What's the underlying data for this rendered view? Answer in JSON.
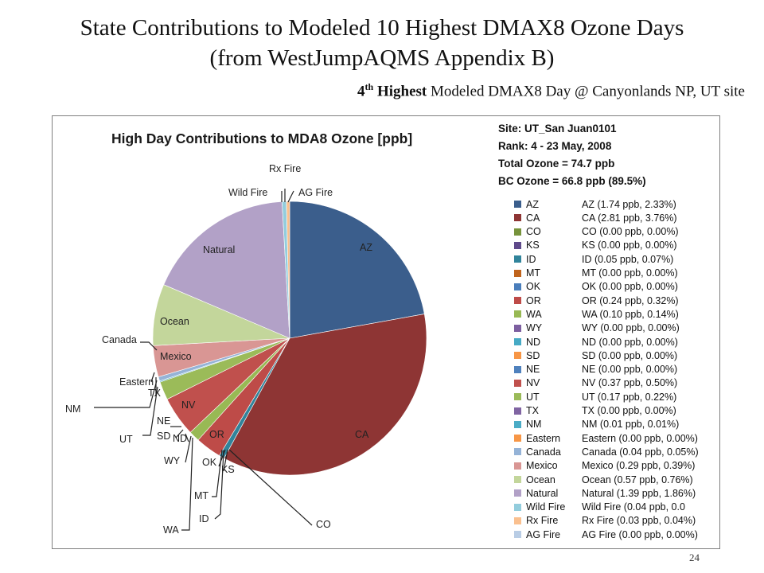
{
  "slide": {
    "title_line1": "State Contributions to Modeled 10 Highest DMAX8 Ozone Days",
    "title_line2": "(from WestJumpAQMS  Appendix B)",
    "subtitle_bold": "4",
    "subtitle_sup": "th",
    "subtitle_bold2": " Highest",
    "subtitle_rest": " Modeled DMAX8 Day @ Canyonlands NP, UT site",
    "page_number": "24"
  },
  "info": {
    "site": "Site: UT_San Juan0101",
    "rank": "Rank: 4 - 23 May, 2008",
    "total": "Total Ozone = 74.7 ppb",
    "bc": "BC Ozone = 66.8 ppb (89.5%)"
  },
  "chart_data": {
    "type": "pie",
    "title": "High Day Contributions to MDA8 Ozone [ppb]",
    "slices": [
      {
        "name": "AZ",
        "value": 1.74,
        "color": "#3b5e8c"
      },
      {
        "name": "CA",
        "value": 2.81,
        "color": "#8e3534"
      },
      {
        "name": "CO",
        "value": 0.0,
        "color": "#77933c"
      },
      {
        "name": "KS",
        "value": 0.0,
        "color": "#5f4a8b"
      },
      {
        "name": "ID",
        "value": 0.05,
        "color": "#31849b"
      },
      {
        "name": "MT",
        "value": 0.0,
        "color": "#c0641c"
      },
      {
        "name": "OK",
        "value": 0.0,
        "color": "#4a7ebb"
      },
      {
        "name": "OR",
        "value": 0.24,
        "color": "#be4b48"
      },
      {
        "name": "WA",
        "value": 0.1,
        "color": "#98b954"
      },
      {
        "name": "WY",
        "value": 0.0,
        "color": "#7d5fa0"
      },
      {
        "name": "ND",
        "value": 0.0,
        "color": "#46aac5"
      },
      {
        "name": "SD",
        "value": 0.0,
        "color": "#f79646"
      },
      {
        "name": "NE",
        "value": 0.0,
        "color": "#4f81bd"
      },
      {
        "name": "NV",
        "value": 0.37,
        "color": "#c0504d"
      },
      {
        "name": "UT",
        "value": 0.17,
        "color": "#9bbb59"
      },
      {
        "name": "TX",
        "value": 0.0,
        "color": "#8064a2"
      },
      {
        "name": "NM",
        "value": 0.01,
        "color": "#4bacc6"
      },
      {
        "name": "Eastern",
        "value": 0.0,
        "color": "#f79646"
      },
      {
        "name": "Canada",
        "value": 0.04,
        "color": "#95b3d7"
      },
      {
        "name": "Mexico",
        "value": 0.29,
        "color": "#d99694"
      },
      {
        "name": "Ocean",
        "value": 0.57,
        "color": "#c3d69b"
      },
      {
        "name": "Natural",
        "value": 1.39,
        "color": "#b2a1c7"
      },
      {
        "name": "Wild Fire",
        "value": 0.04,
        "color": "#93cddd"
      },
      {
        "name": "Rx Fire",
        "value": 0.03,
        "color": "#fac08f"
      },
      {
        "name": "AG Fire",
        "value": 0.0,
        "color": "#b9cde5"
      }
    ],
    "legend_entries": [
      "AZ (1.74 ppb, 2.33%)",
      "CA (2.81 ppb, 3.76%)",
      "CO (0.00 ppb, 0.00%)",
      "KS (0.00 ppb, 0.00%)",
      "ID (0.05 ppb, 0.07%)",
      "MT (0.00 ppb, 0.00%)",
      "OK (0.00 ppb, 0.00%)",
      "OR (0.24 ppb, 0.32%)",
      "WA (0.10 ppb, 0.14%)",
      "WY (0.00 ppb, 0.00%)",
      "ND (0.00 ppb, 0.00%)",
      "SD (0.00 ppb, 0.00%)",
      "NE (0.00 ppb, 0.00%)",
      "NV (0.37 ppb, 0.50%)",
      "UT (0.17 ppb, 0.22%)",
      "TX (0.00 ppb, 0.00%)",
      "NM (0.01 ppb, 0.01%)",
      "Eastern (0.00 ppb, 0.00%)",
      "Canada (0.04 ppb, 0.05%)",
      "Mexico (0.29 ppb, 0.39%)",
      "Ocean (0.57 ppb, 0.76%)",
      "Natural (1.39 ppb, 1.86%)",
      "Wild Fire (0.04 ppb, 0.0",
      "Rx Fire (0.03 ppb, 0.04%)",
      "AG Fire (0.00 ppb, 0.00%)"
    ],
    "legend_placement": "right"
  }
}
